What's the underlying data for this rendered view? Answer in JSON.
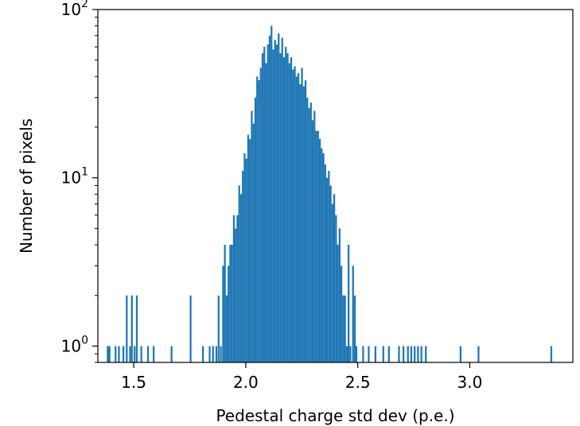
{
  "chart_data": {
    "type": "bar",
    "subtype": "histogram",
    "xlabel": "Pedestal charge std dev (p.e.)",
    "ylabel": "Number of pixels",
    "xlim": [
      1.34,
      3.46
    ],
    "ylim": [
      0.8,
      100
    ],
    "yscale": "log",
    "bin_width": 0.008,
    "grid": false,
    "legend": "none",
    "colors": {
      "bars": "#1f77b4",
      "axes": "#000000",
      "background": "#ffffff"
    },
    "x_ticks": [
      {
        "value": 1.5,
        "label": "1.5"
      },
      {
        "value": 2.0,
        "label": "2.0"
      },
      {
        "value": 2.5,
        "label": "2.5"
      },
      {
        "value": 3.0,
        "label": "3.0"
      }
    ],
    "y_ticks": [
      {
        "value": 1,
        "base": "10",
        "exp": "0"
      },
      {
        "value": 10,
        "base": "10",
        "exp": "1"
      },
      {
        "value": 100,
        "base": "10",
        "exp": "2"
      }
    ],
    "bins": [
      {
        "x": 1.38,
        "y": 1
      },
      {
        "x": 1.388,
        "y": 1
      },
      {
        "x": 1.415,
        "y": 1
      },
      {
        "x": 1.43,
        "y": 1
      },
      {
        "x": 1.45,
        "y": 1
      },
      {
        "x": 1.465,
        "y": 2
      },
      {
        "x": 1.48,
        "y": 1
      },
      {
        "x": 1.488,
        "y": 2
      },
      {
        "x": 1.5,
        "y": 1
      },
      {
        "x": 1.51,
        "y": 2
      },
      {
        "x": 1.53,
        "y": 1
      },
      {
        "x": 1.56,
        "y": 1
      },
      {
        "x": 1.585,
        "y": 1
      },
      {
        "x": 1.665,
        "y": 1
      },
      {
        "x": 1.75,
        "y": 2
      },
      {
        "x": 1.805,
        "y": 1
      },
      {
        "x": 1.835,
        "y": 1
      },
      {
        "x": 1.85,
        "y": 1
      },
      {
        "x": 1.865,
        "y": 1
      },
      {
        "x": 1.875,
        "y": 2
      },
      {
        "x": 1.885,
        "y": 1
      },
      {
        "x": 1.895,
        "y": 3
      },
      {
        "x": 1.903,
        "y": 4
      },
      {
        "x": 1.911,
        "y": 2
      },
      {
        "x": 1.919,
        "y": 3
      },
      {
        "x": 1.927,
        "y": 4
      },
      {
        "x": 1.935,
        "y": 4
      },
      {
        "x": 1.943,
        "y": 6
      },
      {
        "x": 1.951,
        "y": 5
      },
      {
        "x": 1.959,
        "y": 6
      },
      {
        "x": 1.967,
        "y": 9
      },
      {
        "x": 1.975,
        "y": 8
      },
      {
        "x": 1.983,
        "y": 11
      },
      {
        "x": 1.991,
        "y": 14
      },
      {
        "x": 1.999,
        "y": 13
      },
      {
        "x": 2.007,
        "y": 18
      },
      {
        "x": 2.015,
        "y": 17
      },
      {
        "x": 2.023,
        "y": 25
      },
      {
        "x": 2.031,
        "y": 21
      },
      {
        "x": 2.039,
        "y": 30
      },
      {
        "x": 2.047,
        "y": 40
      },
      {
        "x": 2.055,
        "y": 38
      },
      {
        "x": 2.063,
        "y": 45
      },
      {
        "x": 2.071,
        "y": 55
      },
      {
        "x": 2.079,
        "y": 60
      },
      {
        "x": 2.087,
        "y": 48
      },
      {
        "x": 2.095,
        "y": 62
      },
      {
        "x": 2.103,
        "y": 70
      },
      {
        "x": 2.111,
        "y": 80
      },
      {
        "x": 2.119,
        "y": 58
      },
      {
        "x": 2.127,
        "y": 66
      },
      {
        "x": 2.135,
        "y": 62
      },
      {
        "x": 2.143,
        "y": 72
      },
      {
        "x": 2.151,
        "y": 55
      },
      {
        "x": 2.159,
        "y": 68
      },
      {
        "x": 2.167,
        "y": 52
      },
      {
        "x": 2.175,
        "y": 60
      },
      {
        "x": 2.183,
        "y": 55
      },
      {
        "x": 2.191,
        "y": 48
      },
      {
        "x": 2.199,
        "y": 52
      },
      {
        "x": 2.207,
        "y": 44
      },
      {
        "x": 2.215,
        "y": 46
      },
      {
        "x": 2.223,
        "y": 40
      },
      {
        "x": 2.231,
        "y": 42
      },
      {
        "x": 2.239,
        "y": 36
      },
      {
        "x": 2.247,
        "y": 45
      },
      {
        "x": 2.255,
        "y": 35
      },
      {
        "x": 2.263,
        "y": 38
      },
      {
        "x": 2.271,
        "y": 30
      },
      {
        "x": 2.279,
        "y": 26
      },
      {
        "x": 2.287,
        "y": 28
      },
      {
        "x": 2.295,
        "y": 22
      },
      {
        "x": 2.303,
        "y": 25
      },
      {
        "x": 2.311,
        "y": 19
      },
      {
        "x": 2.319,
        "y": 19
      },
      {
        "x": 2.327,
        "y": 17
      },
      {
        "x": 2.335,
        "y": 15
      },
      {
        "x": 2.343,
        "y": 14
      },
      {
        "x": 2.351,
        "y": 12
      },
      {
        "x": 2.359,
        "y": 10
      },
      {
        "x": 2.367,
        "y": 11
      },
      {
        "x": 2.375,
        "y": 9
      },
      {
        "x": 2.383,
        "y": 7
      },
      {
        "x": 2.391,
        "y": 8
      },
      {
        "x": 2.399,
        "y": 6
      },
      {
        "x": 2.407,
        "y": 4
      },
      {
        "x": 2.415,
        "y": 5
      },
      {
        "x": 2.423,
        "y": 3
      },
      {
        "x": 2.431,
        "y": 2
      },
      {
        "x": 2.439,
        "y": 2
      },
      {
        "x": 2.447,
        "y": 1
      },
      {
        "x": 2.455,
        "y": 4
      },
      {
        "x": 2.463,
        "y": 1
      },
      {
        "x": 2.475,
        "y": 3
      },
      {
        "x": 2.483,
        "y": 2
      },
      {
        "x": 2.49,
        "y": 1
      },
      {
        "x": 2.52,
        "y": 1
      },
      {
        "x": 2.545,
        "y": 1
      },
      {
        "x": 2.575,
        "y": 1
      },
      {
        "x": 2.61,
        "y": 1
      },
      {
        "x": 2.635,
        "y": 1
      },
      {
        "x": 2.68,
        "y": 1
      },
      {
        "x": 2.7,
        "y": 1
      },
      {
        "x": 2.72,
        "y": 1
      },
      {
        "x": 2.735,
        "y": 1
      },
      {
        "x": 2.75,
        "y": 1
      },
      {
        "x": 2.765,
        "y": 1
      },
      {
        "x": 2.78,
        "y": 1
      },
      {
        "x": 2.8,
        "y": 1
      },
      {
        "x": 2.955,
        "y": 1
      },
      {
        "x": 3.035,
        "y": 1
      },
      {
        "x": 3.36,
        "y": 1
      }
    ]
  }
}
